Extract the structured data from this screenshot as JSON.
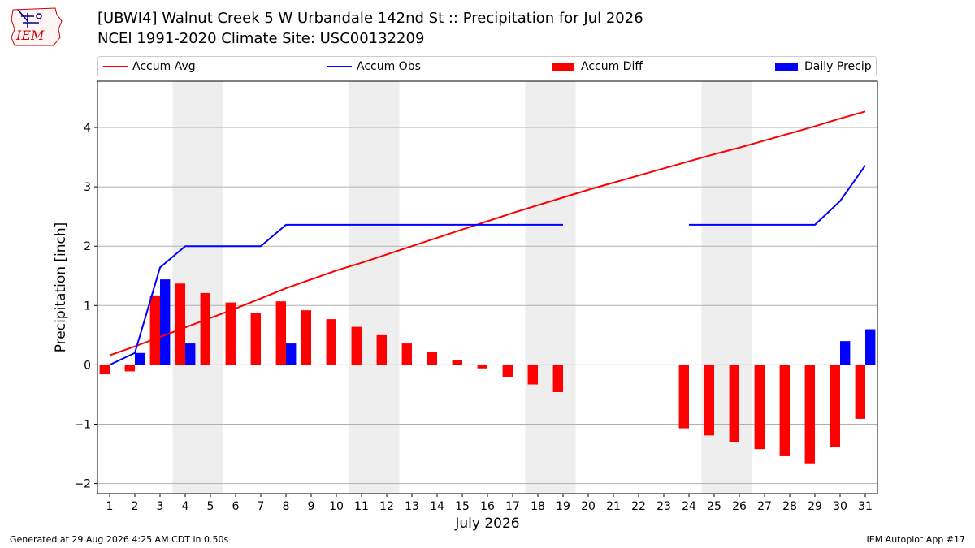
{
  "header": {
    "title_line1": "[UBWI4] Walnut Creek 5 W Urbandale 142nd St :: Precipitation for Jul 2026",
    "title_line2": "NCEI 1991-2020 Climate Site: USC00132209",
    "logo_text": "IEM"
  },
  "footer": {
    "left": "Generated at 29 Aug 2026 4:25 AM CDT in 0.50s",
    "right": "IEM Autoplot App #17"
  },
  "colors": {
    "avg": "#ff0000",
    "obs": "#0000ff",
    "diff": "#ff0000",
    "daily": "#0000ff",
    "weekend_shade": "#eeeeee",
    "grid": "#b0b0b0"
  },
  "chart_data": {
    "type": "bar",
    "xlabel": "July 2026",
    "ylabel": "Precipitation [inch]",
    "ylim": [
      -2.17,
      4.78
    ],
    "yticks": [
      -2,
      -1,
      0,
      1,
      2,
      3,
      4
    ],
    "ytick_labels": [
      "−2",
      "−1",
      "0",
      "1",
      "2",
      "3",
      "4"
    ],
    "grid": "horizontal",
    "legend_placement": "top",
    "legend": [
      "Accum Avg",
      "Accum Obs",
      "Accum Diff",
      "Daily Precip"
    ],
    "days": [
      1,
      2,
      3,
      4,
      5,
      6,
      7,
      8,
      9,
      10,
      11,
      12,
      13,
      14,
      15,
      16,
      17,
      18,
      19,
      20,
      21,
      22,
      23,
      24,
      25,
      26,
      27,
      28,
      29,
      30,
      31
    ],
    "weekend_shading": [
      [
        4,
        5
      ],
      [
        11,
        12
      ],
      [
        18,
        19
      ],
      [
        25,
        26
      ]
    ],
    "series": [
      {
        "name": "Accum Avg",
        "kind": "line",
        "values": [
          0.16,
          0.31,
          0.47,
          0.63,
          0.79,
          0.95,
          1.12,
          1.29,
          1.44,
          1.59,
          1.72,
          1.86,
          2.0,
          2.14,
          2.28,
          2.42,
          2.56,
          2.69,
          2.82,
          2.95,
          3.07,
          3.19,
          3.31,
          3.43,
          3.55,
          3.66,
          3.78,
          3.9,
          4.02,
          4.15,
          4.27
        ]
      },
      {
        "name": "Accum Obs",
        "kind": "line",
        "values": [
          0.0,
          0.2,
          1.64,
          2.0,
          2.0,
          2.0,
          2.0,
          2.36,
          2.36,
          2.36,
          2.36,
          2.36,
          2.36,
          2.36,
          2.36,
          2.36,
          2.36,
          2.36,
          2.36,
          null,
          null,
          null,
          null,
          2.36,
          2.36,
          2.36,
          2.36,
          2.36,
          2.36,
          2.76,
          3.36
        ]
      },
      {
        "name": "Accum Diff",
        "kind": "bar",
        "values": [
          -0.16,
          -0.11,
          1.17,
          1.37,
          1.21,
          1.05,
          0.88,
          1.07,
          0.92,
          0.77,
          0.64,
          0.5,
          0.36,
          0.22,
          0.08,
          -0.06,
          -0.2,
          -0.33,
          -0.46,
          null,
          null,
          null,
          null,
          -1.07,
          -1.19,
          -1.3,
          -1.42,
          -1.54,
          -1.66,
          -1.39,
          -0.91
        ]
      },
      {
        "name": "Daily Precip",
        "kind": "bar",
        "values": [
          0.0,
          0.2,
          1.44,
          0.36,
          0.0,
          0.0,
          0.0,
          0.36,
          0.0,
          0.0,
          0.0,
          0.0,
          0.0,
          0.0,
          0.0,
          0.0,
          0.0,
          0.0,
          0.0,
          null,
          null,
          null,
          null,
          0.0,
          0.0,
          0.0,
          0.0,
          0.0,
          0.0,
          0.4,
          0.6
        ]
      }
    ]
  }
}
